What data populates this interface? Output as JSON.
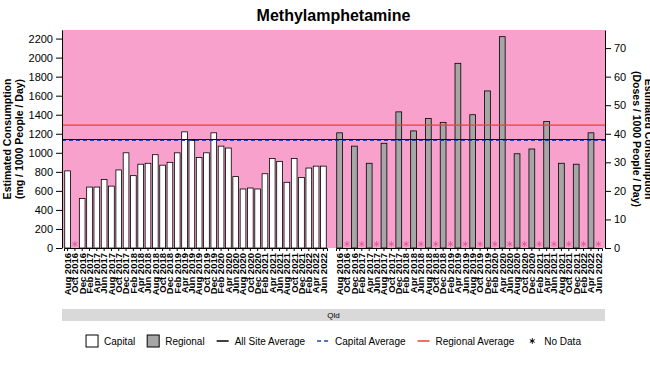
{
  "chart_data": {
    "type": "bar",
    "title": "Methylamphetamine",
    "y_label": [
      "Estimated Consumption",
      "(mg / 1000 People / Day)"
    ],
    "y2_label": [
      "Estimated Consumption",
      "(Doses / 1000 People / Day)"
    ],
    "facet_label": "Qld",
    "categories": [
      "Aug 2016",
      "Oct 2016",
      "Dec 2016",
      "Feb 2017",
      "Apr 2017",
      "Jun 2017",
      "Aug 2017",
      "Oct 2017",
      "Dec 2017",
      "Feb 2018",
      "Apr 2018",
      "Jun 2018",
      "Aug 2018",
      "Oct 2018",
      "Dec 2018",
      "Feb 2019",
      "Apr 2019",
      "Jun 2019",
      "Aug 2019",
      "Oct 2019",
      "Dec 2019",
      "Feb 2020",
      "Apr 2020",
      "Jun 2020",
      "Aug 2020",
      "Oct 2020",
      "Dec 2020",
      "Feb 2021",
      "Apr 2021",
      "Jun 2021",
      "Aug 2021",
      "Oct 2021",
      "Dec 2021",
      "Feb 2022",
      "Apr 2022",
      "Jun 2022"
    ],
    "series": [
      {
        "name": "Capital",
        "color": "#ffffff",
        "values": [
          810,
          null,
          520,
          640,
          640,
          720,
          650,
          820,
          1000,
          760,
          880,
          890,
          980,
          870,
          900,
          1000,
          1220,
          1130,
          950,
          1000,
          1210,
          1070,
          1050,
          750,
          620,
          630,
          620,
          780,
          940,
          910,
          690,
          940,
          740,
          840,
          860,
          860
        ]
      },
      {
        "name": "Regional",
        "color": "#a6a6a6",
        "values": [
          1210,
          null,
          1070,
          null,
          890,
          null,
          1100,
          null,
          1430,
          null,
          1230,
          null,
          1360,
          null,
          1320,
          null,
          1940,
          null,
          1400,
          null,
          1650,
          null,
          2220,
          null,
          990,
          null,
          1040,
          null,
          1330,
          null,
          890,
          null,
          880,
          null,
          1210,
          null
        ]
      }
    ],
    "reference_lines": [
      {
        "name": "All Site Average",
        "value": 1140,
        "color": "#000000",
        "line_style": "solid"
      },
      {
        "name": "Capital Average",
        "value": 1130,
        "color": "#1f3fbf",
        "line_style": "dashed"
      },
      {
        "name": "Regional Average",
        "value": 1290,
        "color": "#e8413a",
        "line_style": "solid"
      }
    ],
    "no_data": {
      "name": "No Data",
      "color": "#e0609a"
    },
    "ylim": [
      0,
      2290
    ],
    "yticks": [
      0,
      200,
      400,
      600,
      800,
      1000,
      1200,
      1400,
      1600,
      1800,
      2000,
      2200
    ],
    "y2lim": [
      0,
      76.33
    ],
    "y2ticks": [
      0,
      10,
      20,
      30,
      40,
      50,
      60,
      70
    ],
    "grid": false,
    "legend": "bottom"
  }
}
